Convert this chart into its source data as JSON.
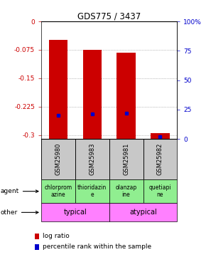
{
  "title": "GDS775 / 3437",
  "samples": [
    "GSM25980",
    "GSM25983",
    "GSM25981",
    "GSM25982"
  ],
  "log_ratios": [
    -0.048,
    -0.075,
    -0.082,
    -0.295
  ],
  "percentile_values": [
    20,
    21,
    22,
    2
  ],
  "ylim_left": [
    -0.31,
    0.0
  ],
  "ylim_right": [
    0,
    100
  ],
  "yticks_left": [
    0,
    -0.075,
    -0.15,
    -0.225,
    -0.3
  ],
  "yticks_right": [
    100,
    75,
    50,
    25,
    0
  ],
  "agents": [
    "chlorprom\nazine",
    "thioridazin\ne",
    "olanzap\nine",
    "quetiapi\nne"
  ],
  "other_groups": [
    [
      "typical",
      2
    ],
    [
      "atypical",
      2
    ]
  ],
  "other_color": "#FF80FF",
  "bar_color": "#CC0000",
  "percentile_color": "#0000CC",
  "sample_bg": "#C8C8C8",
  "left_label_color": "#CC0000",
  "right_label_color": "#0000CC"
}
